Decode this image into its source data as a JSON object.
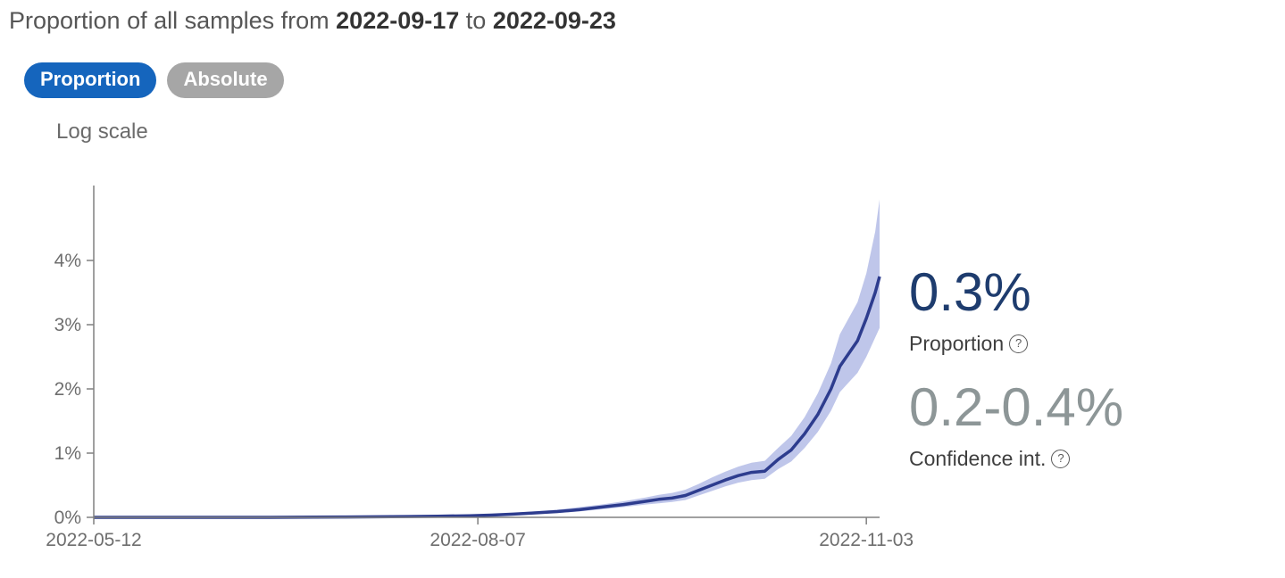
{
  "header": {
    "title_prefix": "Proportion of all samples from ",
    "date_from": "2022-09-17",
    "title_mid": " to ",
    "date_to": "2022-09-23"
  },
  "toggle": {
    "proportion_label": "Proportion",
    "absolute_label": "Absolute",
    "active": "Proportion"
  },
  "scale": {
    "label": "Log scale"
  },
  "stats": {
    "proportion_value": "0.3%",
    "proportion_label": "Proportion",
    "ci_value": "0.2-0.4%",
    "ci_label": "Confidence int.",
    "help_glyph": "?"
  },
  "colors": {
    "accent_blue": "#1565bd",
    "inactive_gray": "#a6a6a6",
    "line": "#2d3c8e",
    "band": "#97a3dd",
    "value_navy": "#1e3c6e",
    "ci_gray": "#8d9697",
    "axis_gray": "#6e6e6e"
  },
  "chart_data": {
    "type": "line",
    "title": "Proportion of all samples from 2022-09-17 to 2022-09-23",
    "xlabel": "",
    "ylabel": "",
    "scale": "linear (Log scale toggle shown)",
    "grid": false,
    "legend": "none",
    "ylim": [
      0,
      5
    ],
    "y_ticks": [
      "0%",
      "1%",
      "2%",
      "3%",
      "4%"
    ],
    "y_tick_values": [
      0,
      1,
      2,
      3,
      4
    ],
    "x_ticks": [
      "2022-05-12",
      "2022-08-07",
      "2022-11-03"
    ],
    "x": [
      "2022-05-12",
      "2022-05-22",
      "2022-06-01",
      "2022-06-11",
      "2022-06-21",
      "2022-07-01",
      "2022-07-08",
      "2022-07-15",
      "2022-07-22",
      "2022-07-29",
      "2022-08-05",
      "2022-08-10",
      "2022-08-15",
      "2022-08-20",
      "2022-08-25",
      "2022-08-30",
      "2022-09-04",
      "2022-09-09",
      "2022-09-14",
      "2022-09-17",
      "2022-09-20",
      "2022-09-23",
      "2022-09-26",
      "2022-09-29",
      "2022-10-02",
      "2022-10-05",
      "2022-10-08",
      "2022-10-11",
      "2022-10-14",
      "2022-10-17",
      "2022-10-20",
      "2022-10-23",
      "2022-10-26",
      "2022-10-28",
      "2022-10-30",
      "2022-11-01",
      "2022-11-03",
      "2022-11-05",
      "2022-11-06"
    ],
    "series": [
      {
        "name": "Proportion",
        "values": [
          0,
          0,
          0,
          0,
          0,
          0.004,
          0.006,
          0.009,
          0.013,
          0.018,
          0.025,
          0.035,
          0.05,
          0.07,
          0.09,
          0.12,
          0.16,
          0.2,
          0.25,
          0.28,
          0.3,
          0.34,
          0.42,
          0.5,
          0.58,
          0.65,
          0.7,
          0.72,
          0.9,
          1.05,
          1.3,
          1.6,
          2.0,
          2.35,
          2.55,
          2.75,
          3.1,
          3.5,
          3.75
        ]
      },
      {
        "name": "CI lower",
        "values": [
          0,
          0,
          0,
          0,
          0,
          0.002,
          0.003,
          0.005,
          0.008,
          0.012,
          0.017,
          0.025,
          0.036,
          0.052,
          0.068,
          0.092,
          0.125,
          0.16,
          0.2,
          0.22,
          0.24,
          0.27,
          0.34,
          0.41,
          0.48,
          0.54,
          0.58,
          0.6,
          0.75,
          0.87,
          1.08,
          1.33,
          1.66,
          1.95,
          2.1,
          2.25,
          2.5,
          2.8,
          2.95
        ]
      },
      {
        "name": "CI upper",
        "values": [
          0.01,
          0.01,
          0.01,
          0.01,
          0.01,
          0.008,
          0.012,
          0.016,
          0.022,
          0.028,
          0.037,
          0.05,
          0.07,
          0.095,
          0.12,
          0.16,
          0.2,
          0.25,
          0.31,
          0.35,
          0.38,
          0.43,
          0.52,
          0.62,
          0.71,
          0.79,
          0.85,
          0.88,
          1.08,
          1.27,
          1.56,
          1.93,
          2.4,
          2.85,
          3.1,
          3.35,
          3.8,
          4.45,
          4.95
        ]
      }
    ]
  }
}
